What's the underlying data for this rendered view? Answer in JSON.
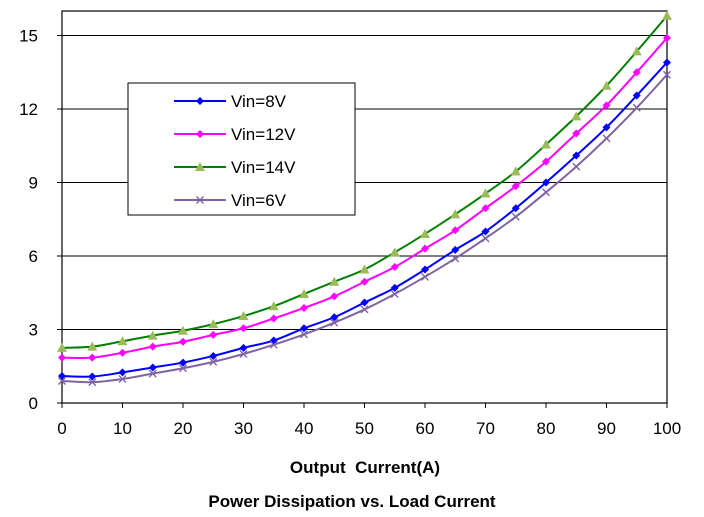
{
  "chart_data": {
    "type": "line",
    "title": "Power Dissipation vs. Load Current",
    "xlabel": "Output  Current(A)",
    "ylabel": "",
    "xlim": [
      0,
      100
    ],
    "ylim": [
      0,
      16
    ],
    "x_ticks": [
      "0",
      "10",
      "20",
      "30",
      "40",
      "50",
      "60",
      "70",
      "80",
      "90",
      "100"
    ],
    "y_ticks": [
      "0",
      "3",
      "6",
      "9",
      "12",
      "15"
    ],
    "grid": "horizontal",
    "legend_position": "upper-left",
    "x": [
      0,
      5,
      10,
      15,
      20,
      25,
      30,
      35,
      40,
      45,
      50,
      55,
      60,
      65,
      70,
      75,
      80,
      85,
      90,
      95,
      100
    ],
    "series": [
      {
        "name": "Vin=8V",
        "color": "#0000ff",
        "marker": "diamond",
        "values": [
          1.1,
          1.08,
          1.25,
          1.45,
          1.65,
          1.92,
          2.25,
          2.55,
          3.05,
          3.5,
          4.1,
          4.7,
          5.45,
          6.25,
          7.0,
          7.95,
          9.0,
          10.1,
          11.25,
          12.55,
          13.9
        ]
      },
      {
        "name": "Vin=12V",
        "color": "#ff00ff",
        "marker": "diamond",
        "values": [
          1.85,
          1.85,
          2.05,
          2.3,
          2.5,
          2.78,
          3.05,
          3.45,
          3.88,
          4.35,
          4.95,
          5.55,
          6.3,
          7.05,
          7.95,
          8.85,
          9.85,
          11.0,
          12.15,
          13.5,
          14.9
        ]
      },
      {
        "name": "Vin=14V",
        "color": "#008000",
        "marker": "triangle",
        "markerColor": "#9bbb59",
        "values": [
          2.25,
          2.3,
          2.52,
          2.75,
          2.95,
          3.22,
          3.55,
          3.95,
          4.45,
          4.95,
          5.45,
          6.15,
          6.9,
          7.7,
          8.55,
          9.45,
          10.55,
          11.7,
          12.95,
          14.35,
          15.8
        ]
      },
      {
        "name": "Vin=6V",
        "color": "#8064a2",
        "marker": "x",
        "values": [
          0.9,
          0.85,
          0.98,
          1.2,
          1.42,
          1.68,
          2.0,
          2.38,
          2.8,
          3.28,
          3.82,
          4.45,
          5.15,
          5.9,
          6.72,
          7.6,
          8.6,
          9.65,
          10.8,
          12.05,
          13.4
        ]
      }
    ]
  }
}
